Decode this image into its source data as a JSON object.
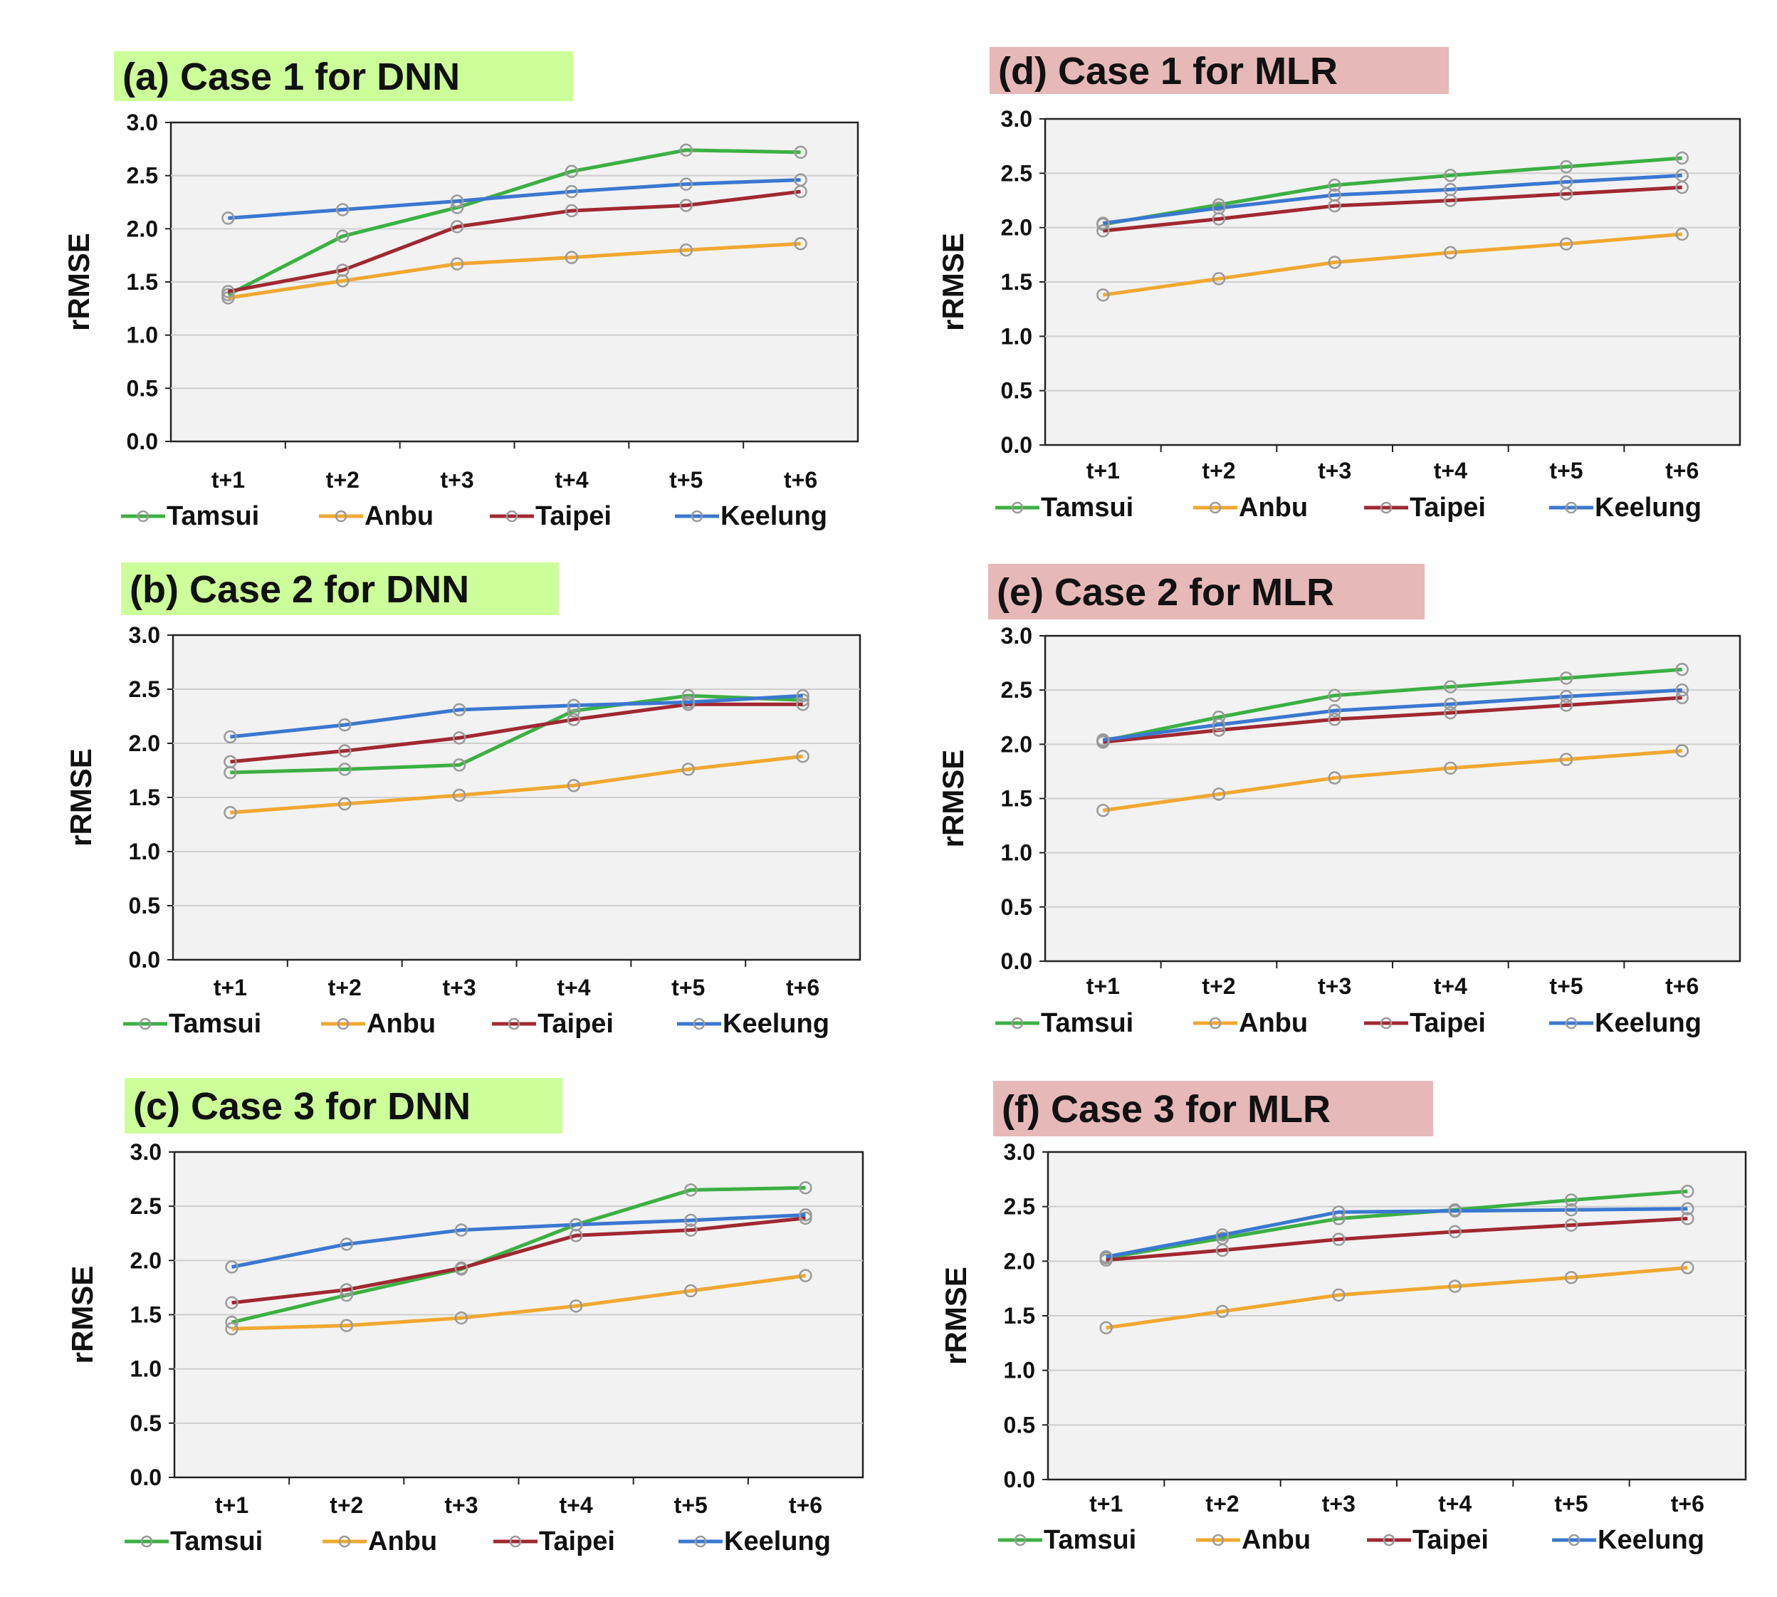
{
  "chart_data": [
    {
      "type": "line",
      "panel": "a",
      "title": "(a) Case 1 for DNN",
      "title_bg": "#ccff99",
      "categories": [
        "t+1",
        "t+2",
        "t+3",
        "t+4",
        "t+5",
        "t+6"
      ],
      "ylabel": "rRMSE",
      "ylim": [
        0,
        3
      ],
      "yticks": [
        "0.0",
        "0.5",
        "1.0",
        "1.5",
        "2.0",
        "2.5",
        "3.0"
      ],
      "legend": "bottom",
      "series": [
        {
          "name": "Tamsui",
          "color": "#3cb043",
          "values": [
            1.38,
            1.93,
            2.2,
            2.54,
            2.74,
            2.72
          ]
        },
        {
          "name": "Anbu",
          "color": "#f0a830",
          "values": [
            1.35,
            1.51,
            1.67,
            1.73,
            1.8,
            1.86
          ]
        },
        {
          "name": "Taipei",
          "color": "#a02832",
          "values": [
            1.41,
            1.61,
            2.02,
            2.17,
            2.22,
            2.35
          ]
        },
        {
          "name": "Keelung",
          "color": "#3a78d0",
          "values": [
            2.1,
            2.18,
            2.26,
            2.35,
            2.42,
            2.46
          ]
        }
      ]
    },
    {
      "type": "line",
      "panel": "b",
      "title": "(b) Case 2 for DNN",
      "title_bg": "#ccff99",
      "categories": [
        "t+1",
        "t+2",
        "t+3",
        "t+4",
        "t+5",
        "t+6"
      ],
      "ylabel": "rRMSE",
      "ylim": [
        0,
        3
      ],
      "yticks": [
        "0.0",
        "0.5",
        "1.0",
        "1.5",
        "2.0",
        "2.5",
        "3.0"
      ],
      "legend": "bottom",
      "series": [
        {
          "name": "Tamsui",
          "color": "#3cb043",
          "values": [
            1.73,
            1.76,
            1.8,
            2.3,
            2.44,
            2.4
          ]
        },
        {
          "name": "Anbu",
          "color": "#f0a830",
          "values": [
            1.36,
            1.44,
            1.52,
            1.61,
            1.76,
            1.88
          ]
        },
        {
          "name": "Taipei",
          "color": "#a02832",
          "values": [
            1.83,
            1.93,
            2.05,
            2.22,
            2.36,
            2.36
          ]
        },
        {
          "name": "Keelung",
          "color": "#3a78d0",
          "values": [
            2.06,
            2.17,
            2.31,
            2.35,
            2.38,
            2.44
          ]
        }
      ]
    },
    {
      "type": "line",
      "panel": "c",
      "title": "(c) Case 3 for DNN",
      "title_bg": "#ccff99",
      "categories": [
        "t+1",
        "t+2",
        "t+3",
        "t+4",
        "t+5",
        "t+6"
      ],
      "ylabel": "rRMSE",
      "ylim": [
        0,
        3
      ],
      "yticks": [
        "0.0",
        "0.5",
        "1.0",
        "1.5",
        "2.0",
        "2.5",
        "3.0"
      ],
      "legend": "bottom",
      "series": [
        {
          "name": "Tamsui",
          "color": "#3cb043",
          "values": [
            1.43,
            1.68,
            1.92,
            2.33,
            2.65,
            2.67
          ]
        },
        {
          "name": "Anbu",
          "color": "#f0a830",
          "values": [
            1.37,
            1.4,
            1.47,
            1.58,
            1.72,
            1.86
          ]
        },
        {
          "name": "Taipei",
          "color": "#a02832",
          "values": [
            1.61,
            1.73,
            1.93,
            2.23,
            2.28,
            2.39
          ]
        },
        {
          "name": "Keelung",
          "color": "#3a78d0",
          "values": [
            1.94,
            2.15,
            2.28,
            2.33,
            2.37,
            2.42
          ]
        }
      ]
    },
    {
      "type": "line",
      "panel": "d",
      "title": "(d) Case 1 for MLR",
      "title_bg": "#e6b8b7",
      "categories": [
        "t+1",
        "t+2",
        "t+3",
        "t+4",
        "t+5",
        "t+6"
      ],
      "ylabel": "rRMSE",
      "ylim": [
        0,
        3
      ],
      "yticks": [
        "0.0",
        "0.5",
        "1.0",
        "1.5",
        "2.0",
        "2.5",
        "3.0"
      ],
      "legend": "bottom",
      "series": [
        {
          "name": "Tamsui",
          "color": "#3cb043",
          "values": [
            2.03,
            2.21,
            2.39,
            2.48,
            2.56,
            2.64
          ]
        },
        {
          "name": "Anbu",
          "color": "#f0a830",
          "values": [
            1.38,
            1.53,
            1.68,
            1.77,
            1.85,
            1.94
          ]
        },
        {
          "name": "Taipei",
          "color": "#a02832",
          "values": [
            1.97,
            2.08,
            2.2,
            2.25,
            2.31,
            2.37
          ]
        },
        {
          "name": "Keelung",
          "color": "#3a78d0",
          "values": [
            2.04,
            2.18,
            2.3,
            2.35,
            2.42,
            2.48
          ]
        }
      ]
    },
    {
      "type": "line",
      "panel": "e",
      "title": "(e) Case 2 for MLR",
      "title_bg": "#e6b8b7",
      "categories": [
        "t+1",
        "t+2",
        "t+3",
        "t+4",
        "t+5",
        "t+6"
      ],
      "ylabel": "rRMSE",
      "ylim": [
        0,
        3
      ],
      "yticks": [
        "0.0",
        "0.5",
        "1.0",
        "1.5",
        "2.0",
        "2.5",
        "3.0"
      ],
      "legend": "bottom",
      "series": [
        {
          "name": "Tamsui",
          "color": "#3cb043",
          "values": [
            2.03,
            2.25,
            2.45,
            2.53,
            2.61,
            2.69
          ]
        },
        {
          "name": "Anbu",
          "color": "#f0a830",
          "values": [
            1.39,
            1.54,
            1.69,
            1.78,
            1.86,
            1.94
          ]
        },
        {
          "name": "Taipei",
          "color": "#a02832",
          "values": [
            2.02,
            2.13,
            2.23,
            2.29,
            2.36,
            2.43
          ]
        },
        {
          "name": "Keelung",
          "color": "#3a78d0",
          "values": [
            2.04,
            2.18,
            2.31,
            2.37,
            2.44,
            2.5
          ]
        }
      ]
    },
    {
      "type": "line",
      "panel": "f",
      "title": "(f) Case 3 for MLR",
      "title_bg": "#e6b8b7",
      "categories": [
        "t+1",
        "t+2",
        "t+3",
        "t+4",
        "t+5",
        "t+6"
      ],
      "ylabel": "rRMSE",
      "ylim": [
        0,
        3
      ],
      "yticks": [
        "0.0",
        "0.5",
        "1.0",
        "1.5",
        "2.0",
        "2.5",
        "3.0"
      ],
      "legend": "bottom",
      "series": [
        {
          "name": "Tamsui",
          "color": "#3cb043",
          "values": [
            2.03,
            2.21,
            2.39,
            2.47,
            2.56,
            2.64
          ]
        },
        {
          "name": "Anbu",
          "color": "#f0a830",
          "values": [
            1.39,
            1.54,
            1.69,
            1.77,
            1.85,
            1.94
          ]
        },
        {
          "name": "Taipei",
          "color": "#a02832",
          "values": [
            2.01,
            2.1,
            2.2,
            2.27,
            2.33,
            2.39
          ]
        },
        {
          "name": "Keelung",
          "color": "#3a78d0",
          "values": [
            2.04,
            2.24,
            2.45,
            2.46,
            2.47,
            2.48
          ]
        }
      ]
    }
  ]
}
